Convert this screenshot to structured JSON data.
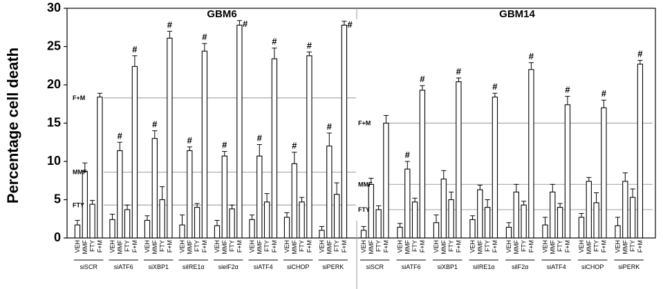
{
  "chart_data": {
    "type": "bar",
    "ylabel": "Percentage cell death",
    "ylim": [
      0,
      30
    ],
    "yticks": [
      0,
      5,
      10,
      15,
      20,
      25,
      30
    ],
    "conditions": [
      "VEH",
      "MMF",
      "FTY",
      "F+M"
    ],
    "significance_marker": "#",
    "panels": [
      {
        "title": "GBM6",
        "reference_lines": [
          {
            "label": "F+M",
            "value": 18.3
          },
          {
            "label": "MMF",
            "value": 8.6
          },
          {
            "label": "FTY",
            "value": 4.3
          }
        ],
        "groups": [
          {
            "label": "siSCR",
            "values": [
              1.7,
              8.7,
              4.4,
              18.4
            ],
            "errors": [
              0.6,
              1.1,
              0.5,
              0.5
            ],
            "marked": [
              false,
              false,
              false,
              false
            ]
          },
          {
            "label": "siATF6",
            "values": [
              2.4,
              11.4,
              3.7,
              22.4
            ],
            "errors": [
              0.7,
              1.1,
              0.6,
              1.4
            ],
            "marked": [
              false,
              true,
              false,
              true
            ]
          },
          {
            "label": "siXBP1",
            "values": [
              2.3,
              13.0,
              5.0,
              26.1
            ],
            "errors": [
              0.6,
              1.0,
              1.7,
              0.9
            ],
            "marked": [
              false,
              true,
              false,
              true
            ]
          },
          {
            "label": "siIRE1α",
            "values": [
              1.7,
              11.4,
              4.0,
              24.4
            ],
            "errors": [
              1.3,
              0.5,
              0.5,
              1.0
            ],
            "marked": [
              false,
              true,
              false,
              true
            ]
          },
          {
            "label": "sielF2α",
            "values": [
              1.6,
              10.7,
              3.8,
              27.8
            ],
            "errors": [
              0.7,
              0.6,
              0.5,
              0.6
            ],
            "marked": [
              false,
              true,
              false,
              true
            ]
          },
          {
            "label": "siATF4",
            "values": [
              2.4,
              10.7,
              4.7,
              23.4
            ],
            "errors": [
              0.6,
              1.5,
              1.1,
              1.4
            ],
            "marked": [
              false,
              true,
              false,
              true
            ]
          },
          {
            "label": "siCHOP",
            "values": [
              2.7,
              9.7,
              4.7,
              23.8
            ],
            "errors": [
              0.6,
              1.5,
              0.6,
              0.5
            ],
            "marked": [
              false,
              true,
              false,
              true
            ]
          },
          {
            "label": "siPERK",
            "values": [
              1.0,
              12.0,
              5.7,
              27.8
            ],
            "errors": [
              0.5,
              1.7,
              1.5,
              0.5
            ],
            "marked": [
              false,
              true,
              false,
              true
            ]
          }
        ]
      },
      {
        "title": "GBM14",
        "reference_lines": [
          {
            "label": "F+M",
            "value": 15.0
          },
          {
            "label": "MMF",
            "value": 7.0
          },
          {
            "label": "FTY",
            "value": 3.7
          }
        ],
        "groups": [
          {
            "label": "siSCR",
            "values": [
              1.0,
              7.0,
              3.7,
              15.0
            ],
            "errors": [
              0.5,
              0.8,
              0.5,
              1.0
            ],
            "marked": [
              false,
              false,
              false,
              false
            ]
          },
          {
            "label": "siATF6",
            "values": [
              1.4,
              9.0,
              4.7,
              19.3
            ],
            "errors": [
              0.5,
              1.0,
              0.5,
              0.6
            ],
            "marked": [
              false,
              true,
              false,
              true
            ]
          },
          {
            "label": "siXBP1",
            "values": [
              2.0,
              7.7,
              5.0,
              20.4
            ],
            "errors": [
              1.0,
              1.1,
              1.0,
              0.5
            ],
            "marked": [
              false,
              false,
              false,
              true
            ]
          },
          {
            "label": "siIRE1α",
            "values": [
              2.4,
              6.3,
              4.0,
              18.4
            ],
            "errors": [
              0.5,
              0.6,
              1.0,
              0.5
            ],
            "marked": [
              false,
              false,
              false,
              true
            ]
          },
          {
            "label": "silF2α",
            "values": [
              1.4,
              6.0,
              4.3,
              22.0
            ],
            "errors": [
              0.6,
              1.0,
              0.5,
              0.9
            ],
            "marked": [
              false,
              false,
              false,
              true
            ]
          },
          {
            "label": "siATF4",
            "values": [
              1.7,
              6.0,
              4.0,
              17.4
            ],
            "errors": [
              1.0,
              1.0,
              0.5,
              1.1
            ],
            "marked": [
              false,
              false,
              false,
              true
            ]
          },
          {
            "label": "siCHOP",
            "values": [
              2.7,
              7.4,
              4.6,
              17.0
            ],
            "errors": [
              0.5,
              0.5,
              1.3,
              1.0
            ],
            "marked": [
              false,
              false,
              false,
              true
            ]
          },
          {
            "label": "siPERK",
            "values": [
              1.6,
              7.4,
              5.3,
              22.7
            ],
            "errors": [
              1.1,
              1.1,
              1.1,
              0.5
            ],
            "marked": [
              false,
              false,
              false,
              true
            ]
          }
        ]
      }
    ]
  }
}
